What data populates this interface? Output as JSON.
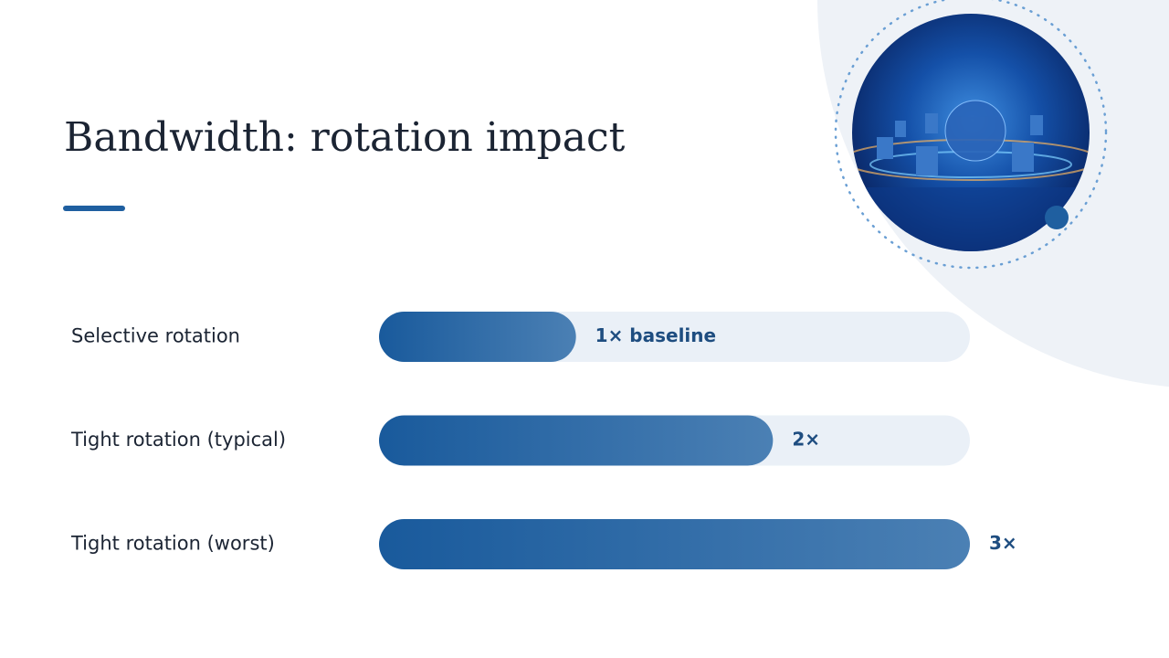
{
  "chart_data": {
    "type": "bar",
    "orientation": "horizontal",
    "title": "Bandwidth: rotation impact",
    "categories": [
      "Selective rotation",
      "Tight rotation (typical)",
      "Tight rotation (worst)"
    ],
    "values": [
      1,
      2,
      3
    ],
    "value_labels": [
      "1× baseline",
      "2×",
      "3×"
    ],
    "xlim": [
      0,
      3
    ],
    "color": "#195a9c"
  }
}
